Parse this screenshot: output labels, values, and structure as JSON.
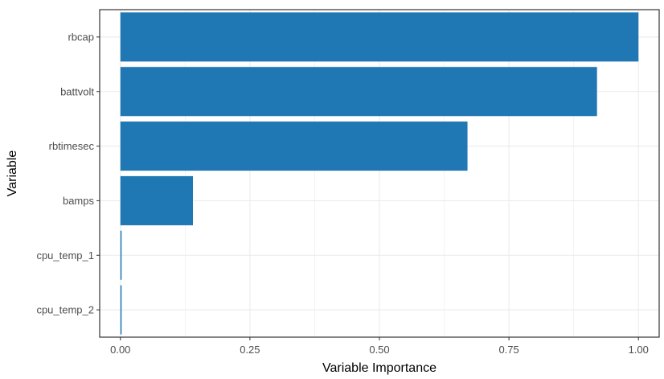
{
  "chart_data": {
    "type": "bar",
    "orientation": "horizontal",
    "title": "",
    "xlabel": "Variable Importance",
    "ylabel": "Variable",
    "categories": [
      "rbcap",
      "battvolt",
      "rbtimesec",
      "bamps",
      "cpu_temp_1",
      "cpu_temp_2"
    ],
    "values": [
      1.0,
      0.92,
      0.67,
      0.14,
      0.002,
      0.002
    ],
    "xlim": [
      -0.04,
      1.04
    ],
    "xticks": [
      0.0,
      0.25,
      0.5,
      0.75,
      1.0
    ],
    "xtick_labels": [
      "0.00",
      "0.25",
      "0.50",
      "0.75",
      "1.00"
    ],
    "grid": true,
    "legend": "none",
    "colors": {
      "bar": "#1f77b4",
      "grid": "#ebebeb",
      "panel_border": "#333333",
      "tick_text": "#4d4d4d",
      "axis_title": "#000000"
    }
  }
}
